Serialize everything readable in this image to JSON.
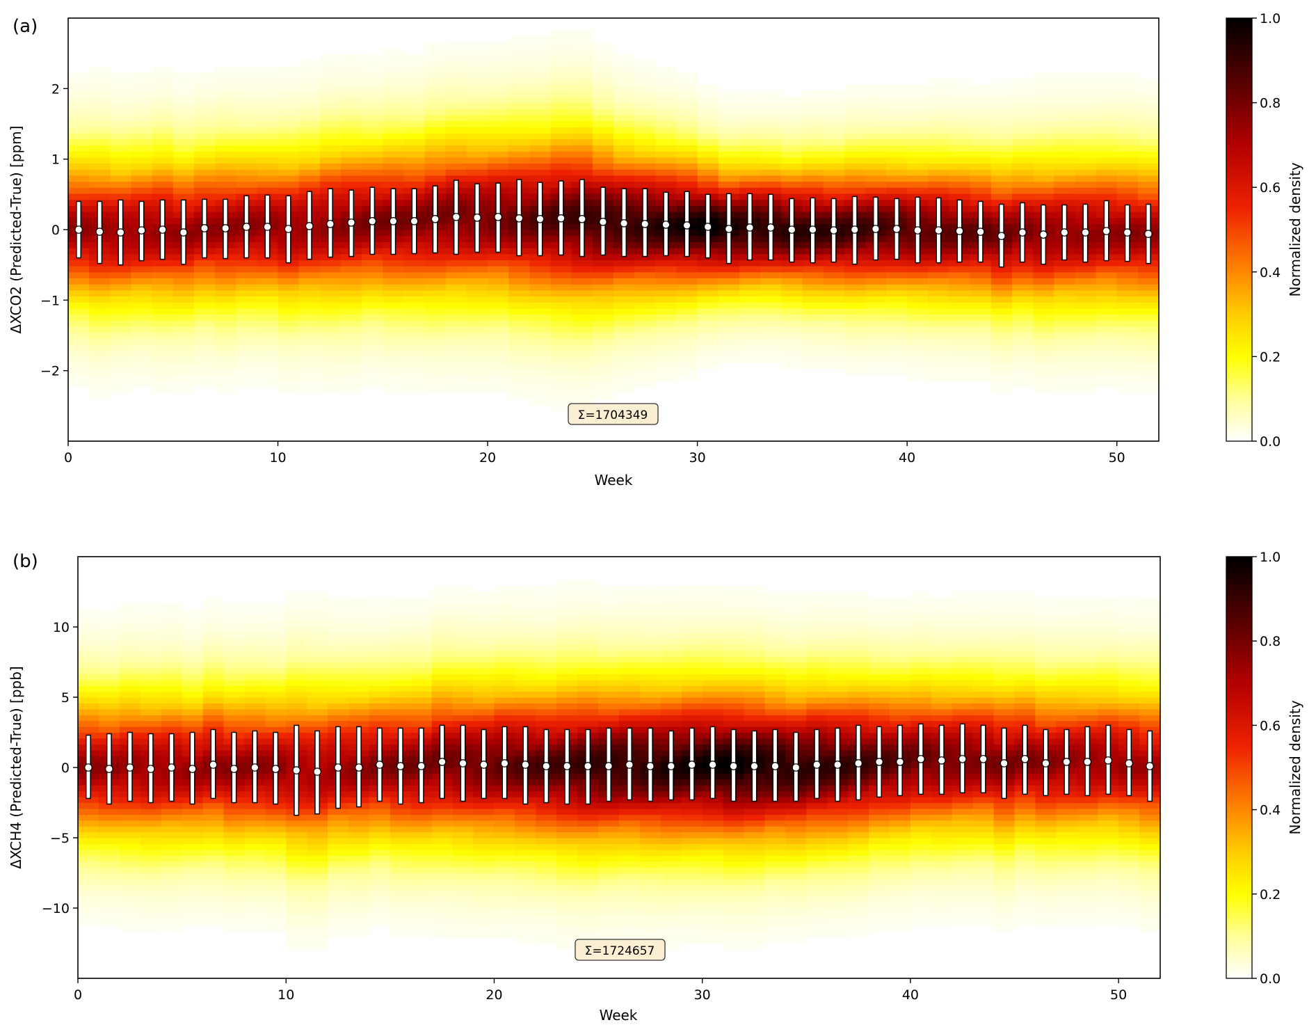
{
  "panels": [
    {
      "label": "(a)",
      "xlabel": "Week",
      "ylabel": "ΔXCO2 (Predicted-True) [ppm]",
      "sum_label": "Σ=1704349",
      "colorbar_label": "Normalized density"
    },
    {
      "label": "(b)",
      "xlabel": "Week",
      "ylabel": "ΔXCH4 (Predicted-True) [ppb]",
      "sum_label": "Σ=1724657",
      "colorbar_label": "Normalized density"
    }
  ],
  "chart_data": [
    {
      "type": "heatmap",
      "title": "",
      "xlabel": "Week",
      "ylabel": "ΔXCO2 (Predicted-True) [ppm]",
      "xlim": [
        0,
        52
      ],
      "ylim": [
        -3,
        3
      ],
      "xticks": [
        0,
        10,
        20,
        30,
        40,
        50
      ],
      "yticks": [
        -2,
        -1,
        0,
        1,
        2
      ],
      "grid": false,
      "colorbar": {
        "label": "Normalized density",
        "range": [
          0,
          1
        ],
        "ticks": [
          0.0,
          0.2,
          0.4,
          0.6,
          0.8,
          1.0
        ],
        "colormap": "afmhot_r"
      },
      "annotation": "Σ=1704349",
      "weeks": [
        0.5,
        1.5,
        2.5,
        3.5,
        4.5,
        5.5,
        6.5,
        7.5,
        8.5,
        9.5,
        10.5,
        11.5,
        12.5,
        13.5,
        14.5,
        15.5,
        16.5,
        17.5,
        18.5,
        19.5,
        20.5,
        21.5,
        22.5,
        23.5,
        24.5,
        25.5,
        26.5,
        27.5,
        28.5,
        29.5,
        30.5,
        31.5,
        32.5,
        33.5,
        34.5,
        35.5,
        36.5,
        37.5,
        38.5,
        39.5,
        40.5,
        41.5,
        42.5,
        43.5,
        44.5,
        45.5,
        46.5,
        47.5,
        48.5,
        49.5,
        50.5,
        51.5
      ],
      "median": [
        0.0,
        -0.03,
        -0.04,
        -0.01,
        0.0,
        -0.04,
        0.02,
        0.02,
        0.04,
        0.04,
        0.01,
        0.05,
        0.08,
        0.1,
        0.12,
        0.12,
        0.12,
        0.15,
        0.18,
        0.17,
        0.18,
        0.16,
        0.15,
        0.16,
        0.15,
        0.11,
        0.09,
        0.08,
        0.07,
        0.06,
        0.04,
        0.01,
        0.03,
        0.03,
        0.0,
        0.0,
        -0.01,
        0.0,
        0.01,
        0.01,
        -0.01,
        -0.01,
        -0.02,
        -0.03,
        -0.09,
        -0.04,
        -0.07,
        -0.04,
        -0.04,
        -0.02,
        -0.04,
        -0.06
      ],
      "err_low": [
        -0.4,
        -0.48,
        -0.5,
        -0.44,
        -0.42,
        -0.49,
        -0.4,
        -0.41,
        -0.4,
        -0.4,
        -0.47,
        -0.42,
        -0.39,
        -0.38,
        -0.35,
        -0.35,
        -0.34,
        -0.33,
        -0.35,
        -0.32,
        -0.32,
        -0.37,
        -0.37,
        -0.36,
        -0.38,
        -0.36,
        -0.38,
        -0.38,
        -0.37,
        -0.38,
        -0.4,
        -0.48,
        -0.43,
        -0.43,
        -0.46,
        -0.47,
        -0.46,
        -0.49,
        -0.43,
        -0.42,
        -0.47,
        -0.47,
        -0.46,
        -0.46,
        -0.53,
        -0.46,
        -0.49,
        -0.43,
        -0.46,
        -0.44,
        -0.45,
        -0.48
      ],
      "err_high": [
        0.4,
        0.4,
        0.42,
        0.4,
        0.42,
        0.42,
        0.43,
        0.43,
        0.48,
        0.49,
        0.48,
        0.54,
        0.58,
        0.56,
        0.6,
        0.58,
        0.58,
        0.62,
        0.7,
        0.65,
        0.66,
        0.71,
        0.67,
        0.69,
        0.71,
        0.6,
        0.58,
        0.58,
        0.53,
        0.54,
        0.5,
        0.51,
        0.51,
        0.5,
        0.44,
        0.45,
        0.44,
        0.47,
        0.46,
        0.44,
        0.46,
        0.45,
        0.42,
        0.4,
        0.36,
        0.38,
        0.35,
        0.35,
        0.36,
        0.41,
        0.35,
        0.36
      ],
      "spread": [
        0.6,
        0.62,
        0.6,
        0.6,
        0.62,
        0.6,
        0.6,
        0.62,
        0.6,
        0.6,
        0.62,
        0.62,
        0.64,
        0.64,
        0.62,
        0.64,
        0.64,
        0.66,
        0.66,
        0.66,
        0.66,
        0.68,
        0.68,
        0.7,
        0.7,
        0.66,
        0.62,
        0.6,
        0.58,
        0.56,
        0.52,
        0.5,
        0.5,
        0.5,
        0.5,
        0.52,
        0.52,
        0.54,
        0.54,
        0.54,
        0.55,
        0.56,
        0.56,
        0.56,
        0.58,
        0.58,
        0.6,
        0.6,
        0.6,
        0.6,
        0.6,
        0.6
      ],
      "peak": [
        0.74,
        0.74,
        0.74,
        0.74,
        0.74,
        0.74,
        0.74,
        0.74,
        0.75,
        0.75,
        0.75,
        0.75,
        0.76,
        0.77,
        0.78,
        0.78,
        0.78,
        0.79,
        0.8,
        0.8,
        0.81,
        0.82,
        0.84,
        0.86,
        0.88,
        0.9,
        0.91,
        0.92,
        0.93,
        0.95,
        0.98,
        0.96,
        0.95,
        0.94,
        0.93,
        0.91,
        0.9,
        0.89,
        0.88,
        0.87,
        0.85,
        0.84,
        0.83,
        0.82,
        0.8,
        0.78,
        0.77,
        0.76,
        0.76,
        0.75,
        0.75,
        0.74
      ]
    },
    {
      "type": "heatmap",
      "title": "",
      "xlabel": "Week",
      "ylabel": "ΔXCH4 (Predicted-True) [ppb]",
      "xlim": [
        0,
        52
      ],
      "ylim": [
        -15,
        15
      ],
      "xticks": [
        0,
        10,
        20,
        30,
        40,
        50
      ],
      "yticks": [
        -10,
        -5,
        0,
        5,
        10
      ],
      "grid": false,
      "colorbar": {
        "label": "Normalized density",
        "range": [
          0,
          1
        ],
        "ticks": [
          0.0,
          0.2,
          0.4,
          0.6,
          0.8,
          1.0
        ],
        "colormap": "afmhot_r"
      },
      "annotation": "Σ=1724657",
      "weeks": [
        0.5,
        1.5,
        2.5,
        3.5,
        4.5,
        5.5,
        6.5,
        7.5,
        8.5,
        9.5,
        10.5,
        11.5,
        12.5,
        13.5,
        14.5,
        15.5,
        16.5,
        17.5,
        18.5,
        19.5,
        20.5,
        21.5,
        22.5,
        23.5,
        24.5,
        25.5,
        26.5,
        27.5,
        28.5,
        29.5,
        30.5,
        31.5,
        32.5,
        33.5,
        34.5,
        35.5,
        36.5,
        37.5,
        38.5,
        39.5,
        40.5,
        41.5,
        42.5,
        43.5,
        44.5,
        45.5,
        46.5,
        47.5,
        48.5,
        49.5,
        50.5,
        51.5
      ],
      "median": [
        0.0,
        -0.1,
        0.0,
        -0.1,
        0.0,
        -0.1,
        0.2,
        -0.1,
        0.0,
        -0.1,
        -0.2,
        -0.3,
        0.0,
        0.0,
        0.2,
        0.1,
        0.1,
        0.4,
        0.3,
        0.2,
        0.3,
        0.2,
        0.1,
        0.1,
        0.1,
        0.1,
        0.2,
        0.1,
        0.1,
        0.2,
        0.2,
        0.1,
        0.1,
        0.1,
        0.0,
        0.2,
        0.2,
        0.3,
        0.4,
        0.4,
        0.6,
        0.5,
        0.6,
        0.6,
        0.3,
        0.6,
        0.3,
        0.4,
        0.4,
        0.5,
        0.3,
        0.1
      ],
      "err_low": [
        -2.2,
        -2.6,
        -2.4,
        -2.5,
        -2.4,
        -2.6,
        -2.2,
        -2.5,
        -2.5,
        -2.6,
        -3.4,
        -3.3,
        -2.9,
        -2.8,
        -2.4,
        -2.6,
        -2.5,
        -2.2,
        -2.4,
        -2.2,
        -2.2,
        -2.6,
        -2.5,
        -2.6,
        -2.6,
        -2.4,
        -2.3,
        -2.4,
        -2.3,
        -2.3,
        -2.2,
        -2.4,
        -2.4,
        -2.4,
        -2.4,
        -2.2,
        -2.4,
        -2.3,
        -2.1,
        -2.0,
        -1.9,
        -1.9,
        -1.8,
        -1.8,
        -2.2,
        -1.9,
        -2.0,
        -1.9,
        -2.0,
        -1.9,
        -2.0,
        -2.4
      ],
      "err_high": [
        2.3,
        2.4,
        2.5,
        2.4,
        2.4,
        2.5,
        2.7,
        2.5,
        2.6,
        2.5,
        3.0,
        2.6,
        2.9,
        2.9,
        2.8,
        2.8,
        2.8,
        3.0,
        3.0,
        2.7,
        2.9,
        2.9,
        2.7,
        2.7,
        2.7,
        2.8,
        2.8,
        2.8,
        2.6,
        2.8,
        2.9,
        2.7,
        2.6,
        2.7,
        2.5,
        2.7,
        2.8,
        3.0,
        2.9,
        3.0,
        3.1,
        3.0,
        3.1,
        3.0,
        2.8,
        3.0,
        2.7,
        2.7,
        2.9,
        3.0,
        2.7,
        2.6
      ],
      "spread": [
        3.0,
        3.0,
        3.1,
        3.1,
        3.1,
        3.0,
        3.1,
        3.1,
        3.1,
        3.1,
        3.4,
        3.4,
        3.2,
        3.2,
        3.1,
        3.2,
        3.2,
        3.3,
        3.3,
        3.3,
        3.3,
        3.3,
        3.3,
        3.4,
        3.4,
        3.3,
        3.3,
        3.3,
        3.3,
        3.3,
        3.3,
        3.3,
        3.3,
        3.2,
        3.2,
        3.2,
        3.2,
        3.2,
        3.1,
        3.1,
        3.1,
        3.1,
        3.1,
        3.1,
        3.2,
        3.1,
        3.1,
        3.1,
        3.1,
        3.1,
        3.1,
        3.2
      ],
      "peak": [
        0.74,
        0.74,
        0.74,
        0.74,
        0.74,
        0.74,
        0.75,
        0.75,
        0.75,
        0.75,
        0.72,
        0.72,
        0.74,
        0.75,
        0.77,
        0.78,
        0.79,
        0.8,
        0.81,
        0.82,
        0.84,
        0.85,
        0.86,
        0.87,
        0.9,
        0.92,
        0.92,
        0.93,
        0.94,
        0.95,
        0.96,
        0.98,
        0.96,
        0.95,
        0.93,
        0.92,
        0.9,
        0.88,
        0.86,
        0.84,
        0.82,
        0.81,
        0.8,
        0.79,
        0.78,
        0.77,
        0.76,
        0.75,
        0.75,
        0.74,
        0.74,
        0.72
      ]
    }
  ]
}
